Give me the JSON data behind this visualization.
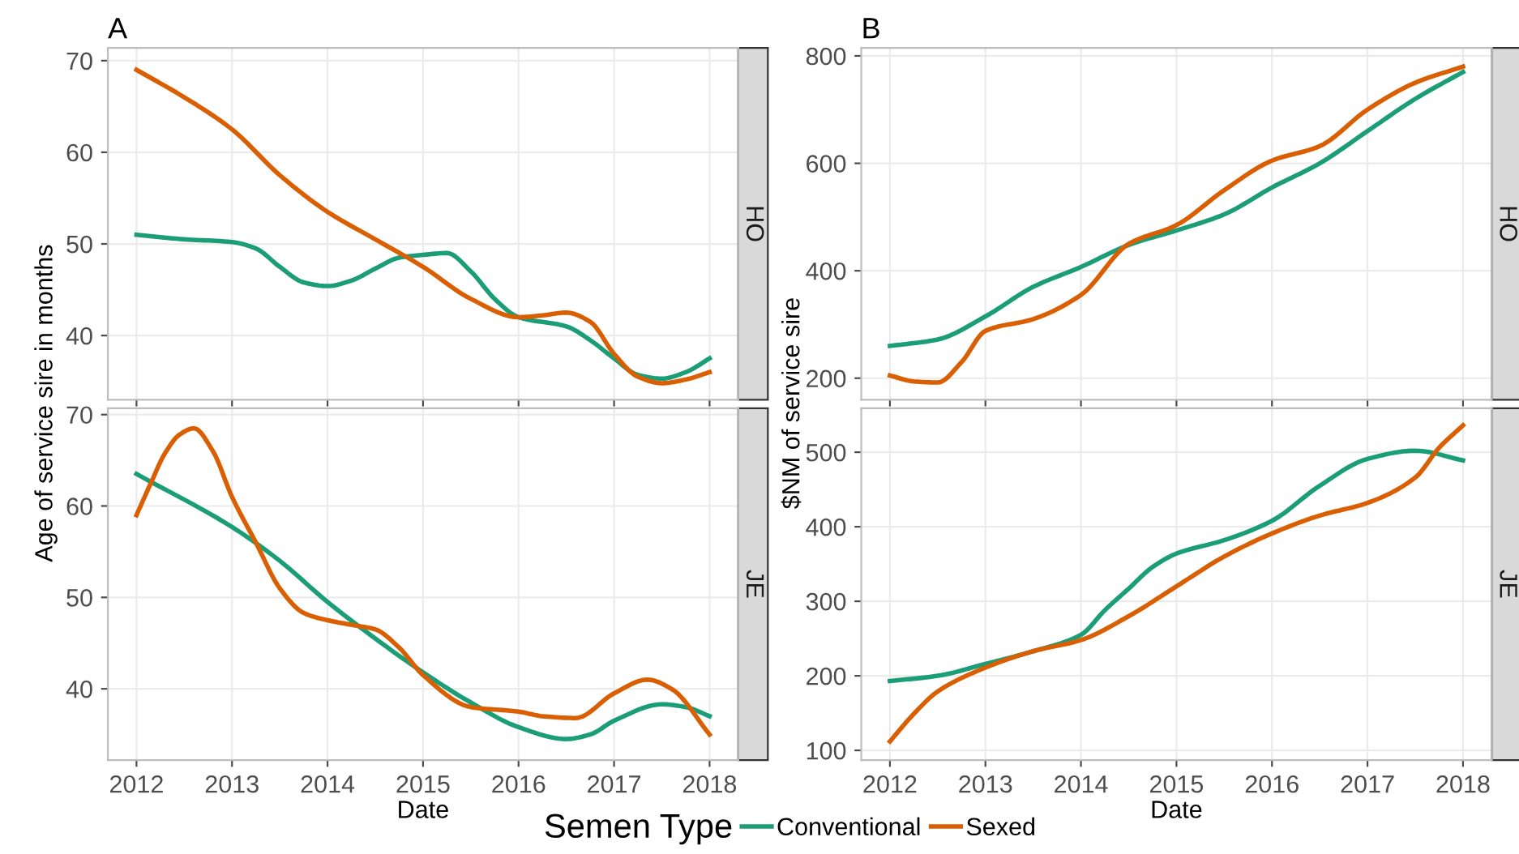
{
  "chart_data": [
    {
      "type": "line",
      "title": "A",
      "ylabel": "Age of service sire in months",
      "annotations": [
        "HO"
      ],
      "xlim": [
        2011.7,
        2018.3
      ],
      "xticks": [
        2012,
        2013,
        2014,
        2015,
        2016,
        2017,
        2018
      ],
      "ylim": [
        33,
        71.4
      ],
      "yticks": [
        40,
        50,
        60,
        70
      ],
      "grid": true,
      "tick_labels": "y",
      "line_style": "solid",
      "marker": "none",
      "series": [
        {
          "color": "#1b9e77",
          "x": [
            2012,
            2012.5,
            2013,
            2013.25,
            2013.5,
            2013.75,
            2014,
            2014.25,
            2014.5,
            2014.75,
            2015,
            2015.25,
            2015.5,
            2015.75,
            2016,
            2016.5,
            2016.75,
            2017,
            2017.25,
            2017.5,
            2017.75,
            2018
          ],
          "values": [
            51,
            50.5,
            50.2,
            49.5,
            47.5,
            45.8,
            45.4,
            46,
            47.3,
            48.5,
            48.8,
            49,
            47,
            44,
            42,
            41,
            39.5,
            37.5,
            35.7,
            35.3,
            36,
            37.5
          ]
        },
        {
          "color": "#d95f02",
          "x": [
            2012,
            2012.5,
            2013,
            2013.5,
            2014,
            2014.5,
            2015,
            2015.5,
            2016,
            2016.25,
            2016.5,
            2016.75,
            2017,
            2017.25,
            2017.5,
            2017.75,
            2018
          ],
          "values": [
            69,
            66,
            62.5,
            57.5,
            53.5,
            50.5,
            47.5,
            44,
            42,
            42.2,
            42.5,
            41.5,
            38,
            35.5,
            34.8,
            35.2,
            36
          ]
        }
      ]
    },
    {
      "type": "line",
      "title": "B",
      "ylabel": "$NM of service sire",
      "annotations": [
        "HO"
      ],
      "xlim": [
        2011.7,
        2018.3
      ],
      "xticks": [
        2012,
        2013,
        2014,
        2015,
        2016,
        2017,
        2018
      ],
      "ylim": [
        160,
        815
      ],
      "yticks": [
        200,
        400,
        600,
        800
      ],
      "grid": true,
      "tick_labels": "y",
      "line_style": "solid",
      "marker": "none",
      "series": [
        {
          "color": "#1b9e77",
          "x": [
            2012,
            2012.5,
            2013,
            2013.5,
            2014,
            2014.5,
            2015,
            2015.5,
            2016,
            2016.5,
            2017,
            2017.5,
            2018
          ],
          "values": [
            260,
            272,
            315,
            370,
            407,
            448,
            475,
            505,
            555,
            600,
            660,
            720,
            770
          ]
        },
        {
          "color": "#d95f02",
          "x": [
            2012,
            2012.25,
            2012.5,
            2012.75,
            2013,
            2013.5,
            2014,
            2014.5,
            2015,
            2015.5,
            2016,
            2016.5,
            2017,
            2017.5,
            2018
          ],
          "values": [
            205,
            194,
            192,
            230,
            288,
            310,
            355,
            450,
            485,
            550,
            605,
            632,
            700,
            750,
            780
          ]
        }
      ]
    },
    {
      "type": "line",
      "annotations": [
        "JE"
      ],
      "xlabel": "Date",
      "xlim": [
        2011.7,
        2018.3
      ],
      "xticks": [
        2012,
        2013,
        2014,
        2015,
        2016,
        2017,
        2018
      ],
      "ylim": [
        32.2,
        70.7
      ],
      "yticks": [
        40,
        50,
        60,
        70
      ],
      "grid": true,
      "line_style": "solid",
      "marker": "none",
      "series": [
        {
          "color": "#1b9e77",
          "x": [
            2012,
            2013,
            2013.5,
            2014,
            2014.5,
            2015,
            2015.5,
            2016,
            2016.5,
            2016.75,
            2017,
            2017.5,
            2017.75,
            2018
          ],
          "values": [
            63.5,
            57.7,
            54,
            49.5,
            45.5,
            41.8,
            38.5,
            35.8,
            34.5,
            35,
            36.5,
            38.3,
            38,
            37
          ]
        },
        {
          "color": "#d95f02",
          "x": [
            2012,
            2012.15,
            2012.3,
            2012.45,
            2012.6,
            2012.8,
            2013,
            2013.25,
            2013.5,
            2013.75,
            2014,
            2014.25,
            2014.5,
            2014.75,
            2015,
            2015.5,
            2016,
            2016.25,
            2016.6,
            2017,
            2017.35,
            2017.6,
            2018
          ],
          "values": [
            59,
            62.5,
            65.8,
            67.8,
            68.5,
            66,
            61,
            56,
            51,
            48.3,
            47.5,
            47,
            46.5,
            44.5,
            41.5,
            38,
            37.5,
            37,
            36.8,
            39.5,
            41,
            40,
            35
          ]
        }
      ]
    },
    {
      "type": "line",
      "annotations": [
        "JE"
      ],
      "xlabel": "Date",
      "xlim": [
        2011.7,
        2018.3
      ],
      "xticks": [
        2012,
        2013,
        2014,
        2015,
        2016,
        2017,
        2018
      ],
      "ylim": [
        87,
        559
      ],
      "yticks": [
        100,
        200,
        300,
        400,
        500
      ],
      "grid": true,
      "line_style": "solid",
      "marker": "none",
      "legend": "bottom",
      "legend_title": "Semen Type",
      "series": [
        {
          "name": "Conventional",
          "color": "#1b9e77",
          "x": [
            2012,
            2012.5,
            2013,
            2013.5,
            2014,
            2014.25,
            2014.5,
            2014.75,
            2015,
            2015.5,
            2016,
            2016.5,
            2017,
            2017.5,
            2018
          ],
          "values": [
            193,
            200,
            216,
            233,
            255,
            288,
            317,
            346,
            364,
            382,
            408,
            455,
            491,
            502,
            489
          ]
        },
        {
          "name": "Sexed",
          "color": "#d95f02",
          "x": [
            2012,
            2012.25,
            2012.5,
            2013,
            2013.5,
            2014,
            2014.5,
            2015,
            2015.5,
            2016,
            2016.5,
            2017,
            2017.5,
            2017.75,
            2018
          ],
          "values": [
            112,
            149,
            179,
            211,
            233,
            248,
            280,
            320,
            360,
            391,
            415,
            432,
            466,
            506,
            536
          ]
        }
      ]
    }
  ]
}
